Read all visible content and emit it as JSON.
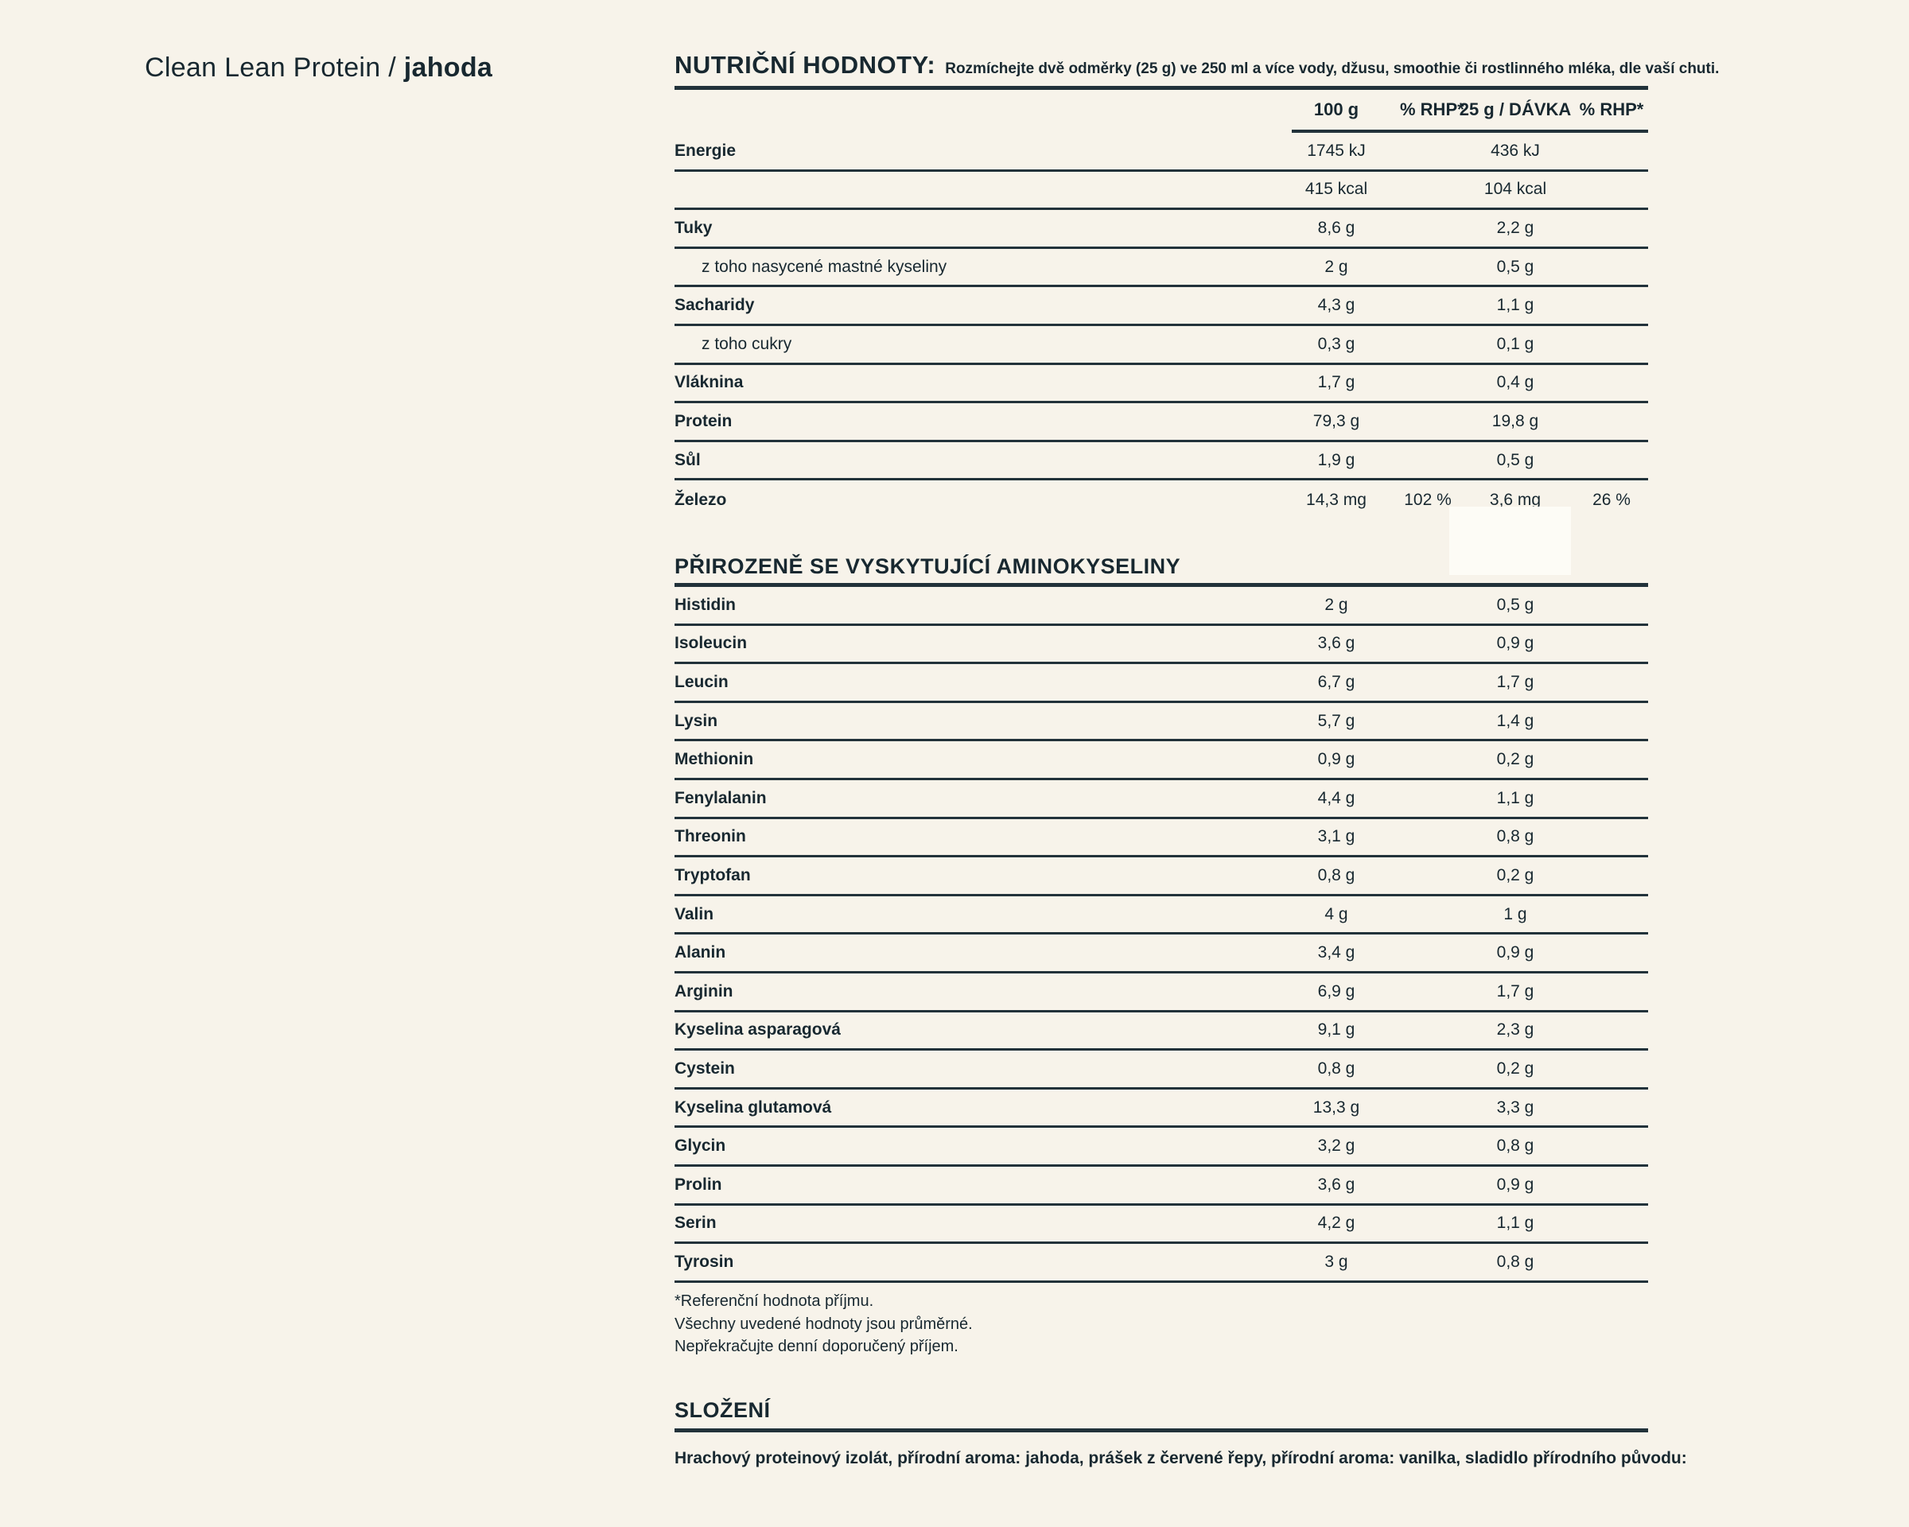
{
  "page": {
    "title_regular": "Clean Lean Protein / ",
    "title_bold": "jahoda"
  },
  "nutrition": {
    "heading": "NUTRIČNÍ HODNOTY:",
    "subheading": "Rozmíchejte dvě odměrky (25 g) ve 250 ml a více vody, džusu, smoothie či rostlinného mléka, dle vaší chuti.",
    "columns": [
      "100 g",
      "% RHP*",
      "25 g / DÁVKA",
      "% RHP*"
    ],
    "rows": [
      {
        "label": "Energie",
        "bold": true,
        "indent": false,
        "v100": "1745 kJ",
        "rhp100": "",
        "v25": "436 kJ",
        "rhp25": "",
        "line": true
      },
      {
        "label": "",
        "bold": false,
        "indent": false,
        "v100": "415 kcal",
        "rhp100": "",
        "v25": "104 kcal",
        "rhp25": "",
        "line": true
      },
      {
        "label": "Tuky",
        "bold": true,
        "indent": false,
        "v100": "8,6 g",
        "rhp100": "",
        "v25": "2,2 g",
        "rhp25": "",
        "line": true
      },
      {
        "label": "z toho nasycené mastné kyseliny",
        "bold": false,
        "indent": true,
        "v100": "2 g",
        "rhp100": "",
        "v25": "0,5 g",
        "rhp25": "",
        "line": true
      },
      {
        "label": "Sacharidy",
        "bold": true,
        "indent": false,
        "v100": "4,3 g",
        "rhp100": "",
        "v25": "1,1 g",
        "rhp25": "",
        "line": true
      },
      {
        "label": "z toho cukry",
        "bold": false,
        "indent": true,
        "v100": "0,3 g",
        "rhp100": "",
        "v25": "0,1 g",
        "rhp25": "",
        "line": true
      },
      {
        "label": "Vláknina",
        "bold": true,
        "indent": false,
        "v100": "1,7 g",
        "rhp100": "",
        "v25": "0,4 g",
        "rhp25": "",
        "line": true
      },
      {
        "label": "Protein",
        "bold": true,
        "indent": false,
        "v100": "79,3 g",
        "rhp100": "",
        "v25": "19,8 g",
        "rhp25": "",
        "line": true
      },
      {
        "label": "Sůl",
        "bold": true,
        "indent": false,
        "v100": "1,9 g",
        "rhp100": "",
        "v25": "0,5 g",
        "rhp25": "",
        "line": true
      },
      {
        "label": "Železo",
        "bold": true,
        "indent": false,
        "v100": "14,3 mg",
        "rhp100": "102 %",
        "v25": "3,6 mg",
        "rhp25": "26 %",
        "line": false
      }
    ]
  },
  "amino": {
    "heading": "PŘIROZENĚ SE VYSKYTUJÍCÍ AMINOKYSELINY",
    "rows": [
      {
        "label": "Histidin",
        "v100": "2 g",
        "v25": "0,5 g"
      },
      {
        "label": "Isoleucin",
        "v100": "3,6 g",
        "v25": "0,9 g"
      },
      {
        "label": "Leucin",
        "v100": "6,7 g",
        "v25": "1,7 g"
      },
      {
        "label": "Lysin",
        "v100": "5,7 g",
        "v25": "1,4 g"
      },
      {
        "label": "Methionin",
        "v100": "0,9 g",
        "v25": "0,2 g"
      },
      {
        "label": "Fenylalanin",
        "v100": "4,4 g",
        "v25": "1,1 g"
      },
      {
        "label": "Threonin",
        "v100": "3,1 g",
        "v25": "0,8 g"
      },
      {
        "label": "Tryptofan",
        "v100": "0,8 g",
        "v25": "0,2 g"
      },
      {
        "label": "Valin",
        "v100": "4 g",
        "v25": "1 g"
      },
      {
        "label": "Alanin",
        "v100": "3,4 g",
        "v25": "0,9 g"
      },
      {
        "label": "Arginin",
        "v100": "6,9 g",
        "v25": "1,7 g"
      },
      {
        "label": "Kyselina asparagová",
        "v100": "9,1 g",
        "v25": "2,3 g"
      },
      {
        "label": "Cystein",
        "v100": "0,8 g",
        "v25": "0,2 g"
      },
      {
        "label": "Kyselina glutamová",
        "v100": "13,3 g",
        "v25": "3,3 g"
      },
      {
        "label": "Glycin",
        "v100": "3,2 g",
        "v25": "0,8 g"
      },
      {
        "label": "Prolin",
        "v100": "3,6 g",
        "v25": "0,9 g"
      },
      {
        "label": "Serin",
        "v100": "4,2 g",
        "v25": "1,1 g"
      },
      {
        "label": "Tyrosin",
        "v100": "3 g",
        "v25": "0,8 g"
      }
    ]
  },
  "footnotes": [
    "*Referenční hodnota příjmu.",
    "Všechny uvedené hodnoty jsou průměrné.",
    "Nepřekračujte denní doporučený příjem."
  ],
  "slozeni": {
    "heading": "SLOŽENÍ",
    "text": "Hrachový proteinový izolát, přírodní aroma: jahoda, prášek z červené řepy, přírodní aroma: vanilka, sladidlo přírodního původu:"
  },
  "colors": {
    "background": "#f7f3ea",
    "text": "#182830",
    "line": "#22323a",
    "patch": "#fdfcf6"
  }
}
